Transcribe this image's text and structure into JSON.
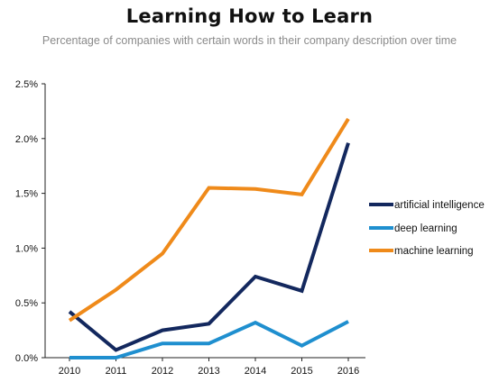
{
  "chart_data": {
    "type": "line",
    "title": "Learning How to Learn",
    "subtitle": "Percentage of companies with certain words in their company description over time",
    "x": [
      "2010",
      "2011",
      "2012",
      "2013",
      "2014",
      "2015",
      "2016"
    ],
    "ylim": [
      0,
      2.5
    ],
    "yticks": [
      "0.0%",
      "0.5%",
      "1.0%",
      "1.5%",
      "2.0%",
      "2.5%"
    ],
    "ytick_values": [
      0,
      0.5,
      1.0,
      1.5,
      2.0,
      2.5
    ],
    "grid": false,
    "legend_position": "right",
    "series": [
      {
        "name": "artificial intelligence",
        "color": "#13285e",
        "values": [
          0.42,
          0.07,
          0.25,
          0.31,
          0.74,
          0.61,
          1.96
        ]
      },
      {
        "name": "deep learning",
        "color": "#1f8fcf",
        "values": [
          0.0,
          0.0,
          0.13,
          0.13,
          0.32,
          0.11,
          0.33
        ]
      },
      {
        "name": "machine learning",
        "color": "#ef8a1a",
        "values": [
          0.34,
          0.62,
          0.95,
          1.55,
          1.54,
          1.49,
          2.18
        ]
      }
    ]
  }
}
